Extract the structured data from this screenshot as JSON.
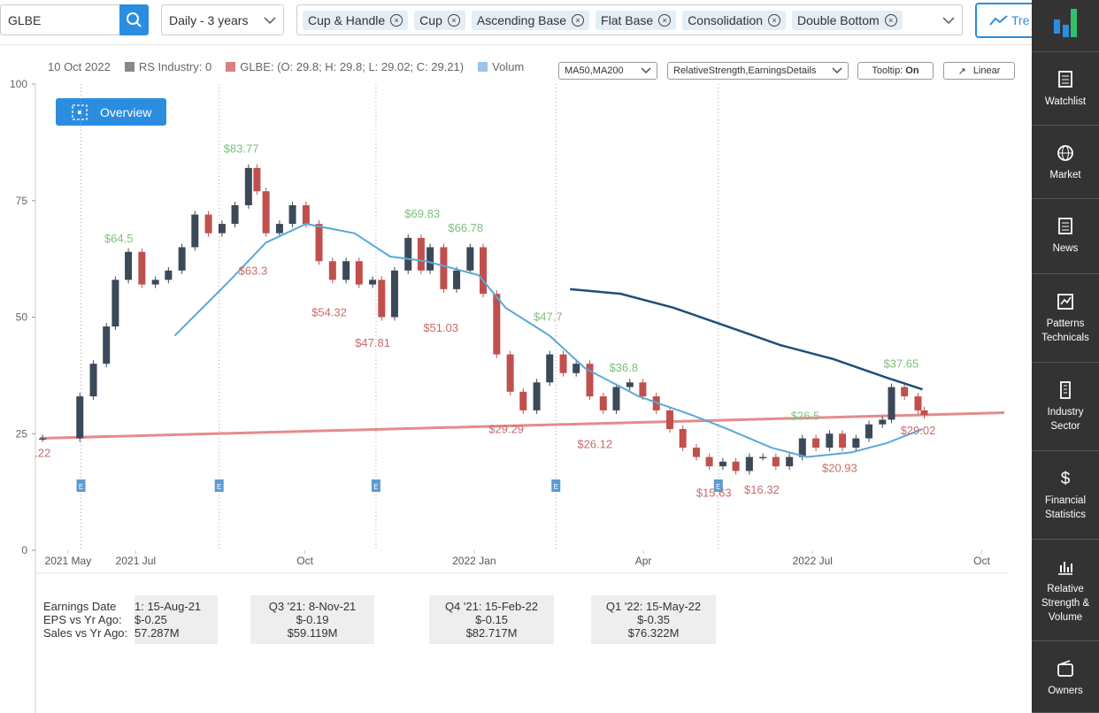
{
  "toolbar": {
    "symbol": "GLBE",
    "period": "Daily - 3 years",
    "patterns": [
      "Cup & Handle",
      "Cup",
      "Ascending Base",
      "Flat Base",
      "Consolidation",
      "Double Bottom"
    ],
    "trends_button": "Tre"
  },
  "sidebar": {
    "items": [
      "Watchlist",
      "Market",
      "News",
      "Patterns Technicals",
      "Industry Sector",
      "Financial Statistics",
      "Relative Strength & Volume",
      "Owners"
    ]
  },
  "legend": {
    "date": "10 Oct 2022",
    "rs_industry": "RS Industry: 0",
    "ohlc": "GLBE: (O: 29.8; H: 29.8; L: 29.02; C: 29.21)",
    "volume": "Volum",
    "ma_select": "MA50,MA200",
    "details_select": "RelativeStrength,EarningsDetails",
    "tooltip": "Tooltip: ",
    "tooltip_state": "On",
    "scale": "Linear",
    "overview": "Overview"
  },
  "chart_data": {
    "type": "candlestick",
    "ylim": [
      0,
      100
    ],
    "yticks": [
      0,
      25,
      50,
      75,
      100
    ],
    "xlim": [
      -1.7,
      15.4
    ],
    "xticks": [
      {
        "value": -1.2,
        "label": "2021 May"
      },
      {
        "value": 0,
        "label": "2021 Jul"
      },
      {
        "value": 3,
        "label": "Oct"
      },
      {
        "value": 6,
        "label": "2022 Jan"
      },
      {
        "value": 9,
        "label": "Apr"
      },
      {
        "value": 12,
        "label": "2022 Jul"
      },
      {
        "value": 15,
        "label": "Oct"
      }
    ],
    "price": {
      "up_color": "#3b4959",
      "down_color": "#c0504d",
      "x": [
        -1.65,
        -0.99,
        -0.75,
        -0.52,
        -0.36,
        -0.13,
        0.11,
        0.35,
        0.58,
        0.82,
        1.05,
        1.29,
        1.53,
        1.76,
        2.0,
        2.15,
        2.31,
        2.55,
        2.78,
        3.02,
        3.25,
        3.49,
        3.73,
        3.96,
        4.2,
        4.36,
        4.59,
        4.83,
        5.06,
        5.22,
        5.46,
        5.69,
        5.93,
        6.16,
        6.4,
        6.64,
        6.87,
        7.11,
        7.34,
        7.58,
        7.81,
        8.05,
        8.29,
        8.52,
        8.76,
        8.99,
        9.23,
        9.47,
        9.7,
        9.94,
        10.17,
        10.41,
        10.64,
        10.88,
        11.12,
        11.35,
        11.59,
        11.82,
        12.06,
        12.3,
        12.53,
        12.77,
        13.0,
        13.24,
        13.4,
        13.63,
        13.87,
        13.98
      ],
      "values": [
        24,
        33,
        40,
        48,
        58,
        64,
        57,
        58,
        60,
        65,
        72,
        68,
        70,
        74,
        82,
        77,
        68,
        70,
        74,
        70,
        62,
        58,
        62,
        57,
        58,
        50,
        60,
        67,
        60,
        65,
        56,
        60,
        65,
        55,
        42,
        34,
        30,
        36,
        42,
        38,
        40,
        33,
        30,
        35,
        36,
        33,
        30,
        26,
        22,
        20,
        18,
        19,
        17,
        20,
        20,
        18,
        20,
        24,
        22,
        25,
        22,
        24,
        27,
        28,
        35,
        33,
        30,
        29
      ]
    },
    "series": [
      {
        "color": "#5aa8d8",
        "x": [
          0.69,
          1.68,
          2.31,
          3.02,
          3.88,
          4.51,
          5.14,
          6.08,
          6.56,
          7.34,
          7.97,
          8.92,
          9.86,
          10.49,
          11.27,
          11.9,
          12.69,
          13.32,
          13.95
        ],
        "values": [
          46,
          58,
          66,
          70,
          68,
          63,
          62,
          59,
          52,
          46,
          39,
          33,
          29,
          26,
          22,
          20,
          21,
          23,
          26
        ]
      },
      {
        "color": "#1f4e79",
        "x": [
          7.7,
          8.6,
          9.54,
          10.49,
          11.43,
          12.37,
          13.32,
          13.95
        ],
        "values": [
          56,
          55,
          52,
          48,
          44,
          41,
          37,
          34.5
        ]
      },
      {
        "color": "#e58b8b",
        "x": [
          -1.7,
          15.4
        ],
        "values": [
          24,
          29.5
        ]
      }
    ],
    "annotations": [
      {
        "x": -0.3,
        "value": 64.5,
        "label": "$64.5",
        "color": "#7dbf7d",
        "place": "above"
      },
      {
        "x": 1.87,
        "value": 83.77,
        "label": "$83.77",
        "color": "#7dbf7d",
        "place": "above"
      },
      {
        "x": 5.08,
        "value": 69.83,
        "label": "$69.83",
        "color": "#7dbf7d",
        "place": "above"
      },
      {
        "x": 5.85,
        "value": 66.78,
        "label": "$66.78",
        "color": "#7dbf7d",
        "place": "above"
      },
      {
        "x": 7.31,
        "value": 47.7,
        "label": "$47.7",
        "color": "#7dbf7d",
        "place": "above"
      },
      {
        "x": 8.65,
        "value": 36.8,
        "label": "$36.8",
        "color": "#7dbf7d",
        "place": "above"
      },
      {
        "x": 11.87,
        "value": 26.5,
        "label": "$26.5",
        "color": "#7dbf7d",
        "place": "above"
      },
      {
        "x": 13.57,
        "value": 37.65,
        "label": "$37.65",
        "color": "#7dbf7d",
        "place": "above"
      },
      {
        "x": -1.65,
        "value": 24.22,
        "label": ".22",
        "color": "#c86b6b",
        "place": "below"
      },
      {
        "x": 2.08,
        "value": 63.3,
        "label": "$63.3",
        "color": "#c86b6b",
        "place": "below"
      },
      {
        "x": 3.43,
        "value": 54.32,
        "label": "$54.32",
        "color": "#c86b6b",
        "place": "below"
      },
      {
        "x": 4.2,
        "value": 47.81,
        "label": "$47.81",
        "color": "#c86b6b",
        "place": "below"
      },
      {
        "x": 5.41,
        "value": 51.03,
        "label": "$51.03",
        "color": "#c86b6b",
        "place": "below"
      },
      {
        "x": 6.57,
        "value": 29.29,
        "label": "$29.29",
        "color": "#c86b6b",
        "place": "below"
      },
      {
        "x": 8.14,
        "value": 26.12,
        "label": "$26.12",
        "color": "#c86b6b",
        "place": "below"
      },
      {
        "x": 10.25,
        "value": 15.63,
        "label": "$15.63",
        "color": "#c86b6b",
        "place": "below"
      },
      {
        "x": 11.1,
        "value": 16.32,
        "label": "$16.32",
        "color": "#c86b6b",
        "place": "below"
      },
      {
        "x": 12.48,
        "value": 20.93,
        "label": "$20.93",
        "color": "#c86b6b",
        "place": "below"
      },
      {
        "x": 13.87,
        "value": 29.02,
        "label": "$29.02",
        "color": "#c86b6b",
        "place": "below"
      }
    ],
    "earnings_markers": {
      "label": "E",
      "x": [
        -0.97,
        1.48,
        4.26,
        7.45,
        10.33
      ]
    }
  },
  "earnings": {
    "row_labels": [
      "Earnings Date",
      "EPS vs Yr Ago:",
      "Sales vs Yr Ago:"
    ],
    "boxes": [
      [
        "1: 15-Aug-21",
        "$-0.25",
        "57.287M"
      ],
      [
        "Q3 '21: 8-Nov-21",
        "$-0.19",
        "$59.119M"
      ],
      [
        "Q4 '21: 15-Feb-22",
        "$-0.15",
        "$82.717M"
      ],
      [
        "Q1 '22: 15-May-22",
        "$-0.35",
        "$76.322M"
      ]
    ]
  }
}
